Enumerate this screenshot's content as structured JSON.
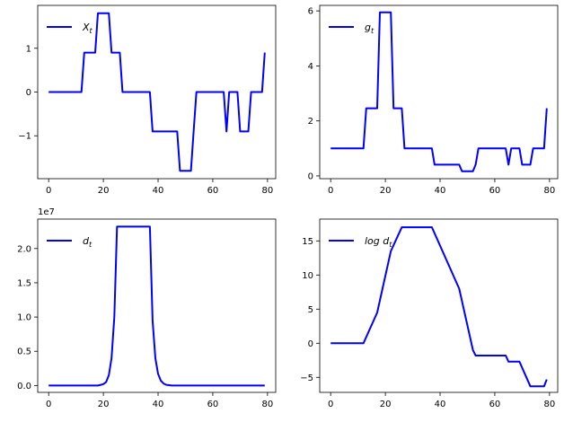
{
  "chart_data": [
    {
      "type": "line",
      "legend": "X_t",
      "legend_display": "X",
      "legend_sub": "t",
      "legend_placement": "top-left",
      "color": "#0000ff",
      "xlim": [
        -4,
        83
      ],
      "ylim": [
        -1.98,
        1.98
      ],
      "xticks": [
        0,
        20,
        40,
        60,
        80
      ],
      "yticks": [
        -1,
        0,
        1
      ],
      "ytick_labels": [
        "−1",
        "0",
        "1"
      ],
      "points": [
        [
          0,
          0
        ],
        [
          12,
          0
        ],
        [
          13,
          0.9
        ],
        [
          17,
          0.9
        ],
        [
          18,
          1.8
        ],
        [
          22,
          1.8
        ],
        [
          23,
          0.9
        ],
        [
          26,
          0.9
        ],
        [
          27,
          0
        ],
        [
          37,
          0
        ],
        [
          38,
          -0.9
        ],
        [
          47,
          -0.9
        ],
        [
          48,
          -1.8
        ],
        [
          52,
          -1.8
        ],
        [
          53,
          -0.9
        ],
        [
          54,
          0
        ],
        [
          64,
          0
        ],
        [
          65,
          -0.9
        ],
        [
          66,
          0
        ],
        [
          69,
          0
        ],
        [
          70,
          -0.9
        ],
        [
          73,
          -0.9
        ],
        [
          74,
          0
        ],
        [
          77,
          0
        ],
        [
          78,
          0
        ],
        [
          79,
          0.9
        ]
      ]
    },
    {
      "type": "line",
      "legend": "g_t",
      "legend_display": "g",
      "legend_sub": "t",
      "legend_placement": "top-left",
      "color": "#0000ff",
      "xlim": [
        -4,
        83
      ],
      "ylim": [
        -0.1,
        6.2
      ],
      "xticks": [
        0,
        20,
        40,
        60,
        80
      ],
      "yticks": [
        0,
        2,
        4,
        6
      ],
      "ytick_labels": [
        "0",
        "2",
        "4",
        "6"
      ],
      "points": [
        [
          0,
          1
        ],
        [
          12,
          1
        ],
        [
          13,
          2.46
        ],
        [
          17,
          2.46
        ],
        [
          18,
          5.95
        ],
        [
          22,
          5.95
        ],
        [
          23,
          2.46
        ],
        [
          26,
          2.46
        ],
        [
          27,
          1
        ],
        [
          37,
          1
        ],
        [
          38,
          0.41
        ],
        [
          47,
          0.41
        ],
        [
          48,
          0.17
        ],
        [
          52,
          0.17
        ],
        [
          53,
          0.41
        ],
        [
          54,
          1
        ],
        [
          64,
          1
        ],
        [
          65,
          0.41
        ],
        [
          66,
          1
        ],
        [
          69,
          1
        ],
        [
          70,
          0.41
        ],
        [
          73,
          0.41
        ],
        [
          74,
          1
        ],
        [
          77,
          1
        ],
        [
          78,
          1
        ],
        [
          79,
          2.46
        ]
      ]
    },
    {
      "type": "line",
      "legend": "d_t",
      "legend_display": "d",
      "legend_sub": "t",
      "legend_placement": "top-left",
      "color": "#0000ff",
      "offset_label": "1e7",
      "xlim": [
        -4,
        83
      ],
      "ylim": [
        -0.1,
        2.43
      ],
      "xticks": [
        0,
        20,
        40,
        60,
        80
      ],
      "yticks": [
        0,
        0.5,
        1.0,
        1.5,
        2.0
      ],
      "ytick_labels": [
        "0.0",
        "0.5",
        "1.0",
        "1.5",
        "2.0"
      ],
      "points": [
        [
          0,
          0
        ],
        [
          18,
          0
        ],
        [
          19,
          0.01
        ],
        [
          20,
          0.02
        ],
        [
          21,
          0.05
        ],
        [
          22,
          0.15
        ],
        [
          23,
          0.4
        ],
        [
          24,
          1.0
        ],
        [
          25,
          2.32
        ],
        [
          36,
          2.32
        ],
        [
          37,
          2.32
        ],
        [
          38,
          0.95
        ],
        [
          39,
          0.4
        ],
        [
          40,
          0.17
        ],
        [
          41,
          0.07
        ],
        [
          42,
          0.03
        ],
        [
          43,
          0.01
        ],
        [
          45,
          0
        ],
        [
          79,
          0
        ]
      ]
    },
    {
      "type": "line",
      "legend": "log d_t",
      "legend_display": "log d",
      "legend_sub": "t",
      "legend_placement": "top-left",
      "color": "#0000ff",
      "xlim": [
        -4,
        83
      ],
      "ylim": [
        -7.2,
        18.2
      ],
      "xticks": [
        0,
        20,
        40,
        60,
        80
      ],
      "yticks": [
        -5,
        0,
        5,
        10,
        15
      ],
      "ytick_labels": [
        "−5",
        "0",
        "5",
        "10",
        "15"
      ],
      "points": [
        [
          0,
          0
        ],
        [
          12,
          0
        ],
        [
          17,
          4.5
        ],
        [
          22,
          13.5
        ],
        [
          26,
          17
        ],
        [
          37,
          17
        ],
        [
          47,
          8
        ],
        [
          52,
          -1
        ],
        [
          53,
          -1.8
        ],
        [
          64,
          -1.8
        ],
        [
          65,
          -2.7
        ],
        [
          69,
          -2.7
        ],
        [
          73,
          -6.3
        ],
        [
          77,
          -6.3
        ],
        [
          78,
          -6.3
        ],
        [
          79,
          -5.3
        ]
      ]
    }
  ]
}
